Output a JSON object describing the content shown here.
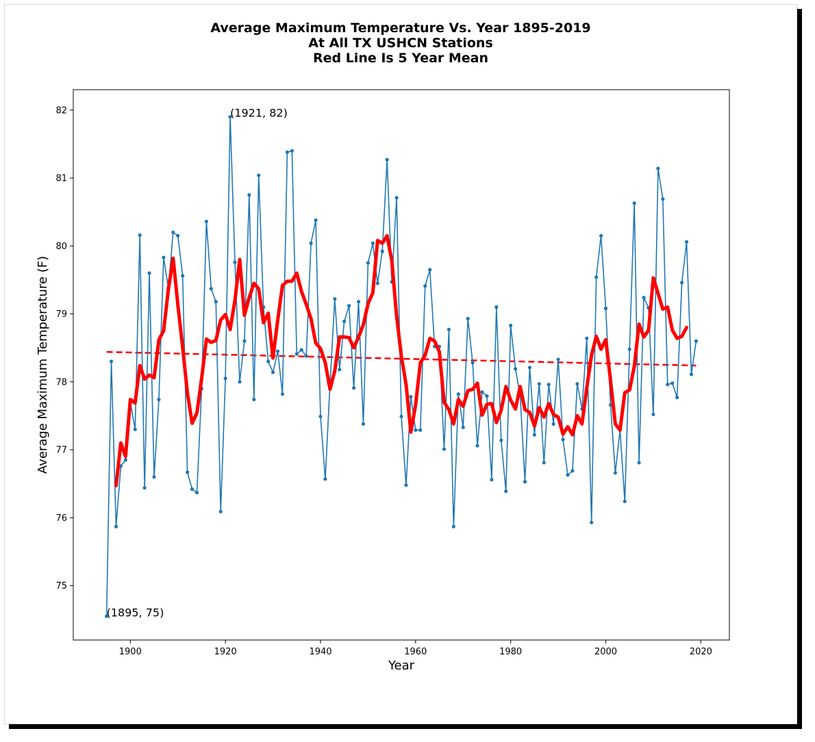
{
  "chart_data": {
    "type": "line",
    "title": [
      "Average Maximum Temperature Vs. Year 1895-2019",
      "At All TX USHCN Stations",
      "Red Line Is 5 Year Mean"
    ],
    "xlabel": "Year",
    "ylabel": "Average Maximum Temperature (F)",
    "xlim": [
      1888,
      2026
    ],
    "ylim": [
      74.2,
      82.3
    ],
    "xticks": [
      1900,
      1920,
      1940,
      1960,
      1980,
      2000,
      2020
    ],
    "yticks": [
      75,
      76,
      77,
      78,
      79,
      80,
      81,
      82
    ],
    "grid": false,
    "annotations": [
      {
        "text": "(1921, 82)",
        "x": 1921,
        "y": 81.9
      },
      {
        "text": "(1895, 75)",
        "x": 1895,
        "y": 74.55
      }
    ],
    "colors": {
      "annual": "#1f77b4",
      "mean": "#ff0000",
      "trend": "#ff0000"
    },
    "series": [
      {
        "key": "annual",
        "style": "line-with-points",
        "x": [
          1895,
          1896,
          1897,
          1898,
          1899,
          1900,
          1901,
          1902,
          1903,
          1904,
          1905,
          1906,
          1907,
          1908,
          1909,
          1910,
          1911,
          1912,
          1913,
          1914,
          1915,
          1916,
          1917,
          1918,
          1919,
          1920,
          1921,
          1922,
          1923,
          1924,
          1925,
          1926,
          1927,
          1928,
          1929,
          1930,
          1931,
          1932,
          1933,
          1934,
          1935,
          1936,
          1937,
          1938,
          1939,
          1940,
          1941,
          1942,
          1943,
          1944,
          1945,
          1946,
          1947,
          1948,
          1949,
          1950,
          1951,
          1952,
          1953,
          1954,
          1955,
          1956,
          1957,
          1958,
          1959,
          1960,
          1961,
          1962,
          1963,
          1964,
          1965,
          1966,
          1967,
          1968,
          1969,
          1970,
          1971,
          1972,
          1973,
          1974,
          1975,
          1976,
          1977,
          1978,
          1979,
          1980,
          1981,
          1982,
          1983,
          1984,
          1985,
          1986,
          1987,
          1988,
          1989,
          1990,
          1991,
          1992,
          1993,
          1994,
          1995,
          1996,
          1997,
          1998,
          1999,
          2000,
          2001,
          2002,
          2003,
          2004,
          2005,
          2006,
          2007,
          2008,
          2009,
          2010,
          2011,
          2012,
          2013,
          2014,
          2015,
          2016,
          2017,
          2018,
          2019
        ],
        "y": [
          74.55,
          78.3,
          75.87,
          76.76,
          76.85,
          77.7,
          77.3,
          80.16,
          76.44,
          79.6,
          76.6,
          77.74,
          79.83,
          79.38,
          80.2,
          80.15,
          79.56,
          76.67,
          76.42,
          76.37,
          77.9,
          80.36,
          79.37,
          79.18,
          76.09,
          78.05,
          81.9,
          79.76,
          78,
          78.6,
          80.75,
          77.74,
          81.04,
          79.1,
          78.3,
          78.14,
          78.45,
          77.82,
          81.38,
          81.4,
          78.41,
          78.47,
          78.38,
          80.04,
          80.38,
          77.49,
          76.57,
          77.97,
          79.22,
          78.18,
          78.89,
          79.12,
          77.91,
          79.18,
          77.38,
          79.75,
          80.04,
          79.45,
          79.92,
          81.27,
          79.47,
          80.71,
          77.49,
          76.48,
          77.78,
          77.29,
          77.29,
          79.41,
          79.65,
          78.52,
          78.52,
          77.01,
          78.77,
          75.87,
          77.82,
          77.33,
          78.93,
          78.28,
          77.06,
          77.85,
          77.79,
          76.56,
          79.1,
          77.14,
          76.39,
          78.83,
          78.19,
          77.8,
          76.53,
          78.21,
          77.22,
          77.97,
          76.81,
          77.96,
          77.38,
          78.33,
          77.15,
          76.63,
          76.69,
          77.97,
          77.6,
          78.64,
          75.93,
          79.54,
          80.15,
          79.08,
          77.66,
          76.66,
          77.29,
          76.24,
          78.48,
          80.63,
          76.81,
          79.24,
          79.09,
          77.52,
          81.14,
          80.69,
          77.96,
          77.98,
          77.77,
          79.46,
          80.06,
          78.11,
          78.6
        ]
      },
      {
        "key": "five_year_mean",
        "style": "thick-line",
        "x": [
          1897,
          1898,
          1899,
          1900,
          1901,
          1902,
          1903,
          1904,
          1905,
          1906,
          1907,
          1908,
          1909,
          1910,
          1911,
          1912,
          1913,
          1914,
          1915,
          1916,
          1917,
          1918,
          1919,
          1920,
          1921,
          1922,
          1923,
          1924,
          1925,
          1926,
          1927,
          1928,
          1929,
          1930,
          1931,
          1932,
          1933,
          1934,
          1935,
          1936,
          1937,
          1938,
          1939,
          1940,
          1941,
          1942,
          1943,
          1944,
          1945,
          1946,
          1947,
          1948,
          1949,
          1950,
          1951,
          1952,
          1953,
          1954,
          1955,
          1956,
          1957,
          1958,
          1959,
          1960,
          1961,
          1962,
          1963,
          1964,
          1965,
          1966,
          1967,
          1968,
          1969,
          1970,
          1971,
          1972,
          1973,
          1974,
          1975,
          1976,
          1977,
          1978,
          1979,
          1980,
          1981,
          1982,
          1983,
          1984,
          1985,
          1986,
          1987,
          1988,
          1989,
          1990,
          1991,
          1992,
          1993,
          1994,
          1995,
          1996,
          1997,
          1998,
          1999,
          2000,
          2001,
          2002,
          2003,
          2004,
          2005,
          2006,
          2007,
          2008,
          2009,
          2010,
          2011,
          2012,
          2013,
          2014,
          2015,
          2016,
          2017
        ],
        "y": [
          76.47,
          77.1,
          76.9,
          77.74,
          77.69,
          78.24,
          78.04,
          78.1,
          78.06,
          78.62,
          78.75,
          79.36,
          79.82,
          79.13,
          78.51,
          77.84,
          77.39,
          77.54,
          78.05,
          78.63,
          78.58,
          78.61,
          78.91,
          78.99,
          78.77,
          79.2,
          79.8,
          78.98,
          79.24,
          79.45,
          79.37,
          78.87,
          79.01,
          78.35,
          78.91,
          79.42,
          79.48,
          79.48,
          79.6,
          79.33,
          79.14,
          78.93,
          78.57,
          78.49,
          78.28,
          77.89,
          78.16,
          78.66,
          78.66,
          78.65,
          78.5,
          78.66,
          78.84,
          79.15,
          79.31,
          80.08,
          80.04,
          80.15,
          79.78,
          78.97,
          78.38,
          77.96,
          77.26,
          77.66,
          78.28,
          78.39,
          78.64,
          78.6,
          78.44,
          77.7,
          77.59,
          77.38,
          77.74,
          77.64,
          77.87,
          77.89,
          77.98,
          77.51,
          77.67,
          77.68,
          77.4,
          77.58,
          77.93,
          77.73,
          77.6,
          77.93,
          77.59,
          77.55,
          77.35,
          77.62,
          77.48,
          77.68,
          77.52,
          77.48,
          77.23,
          77.34,
          77.22,
          77.5,
          77.38,
          77.91,
          78.39,
          78.67,
          78.48,
          78.62,
          78.02,
          77.38,
          77.29,
          77.84,
          77.88,
          78.23,
          78.85,
          78.66,
          78.76,
          79.53,
          79.3,
          79.07,
          79.1,
          78.76,
          78.64,
          78.67,
          78.8
        ]
      },
      {
        "key": "trend",
        "style": "dashed-line",
        "x": [
          1895,
          2019
        ],
        "y": [
          78.44,
          78.24
        ]
      }
    ]
  }
}
